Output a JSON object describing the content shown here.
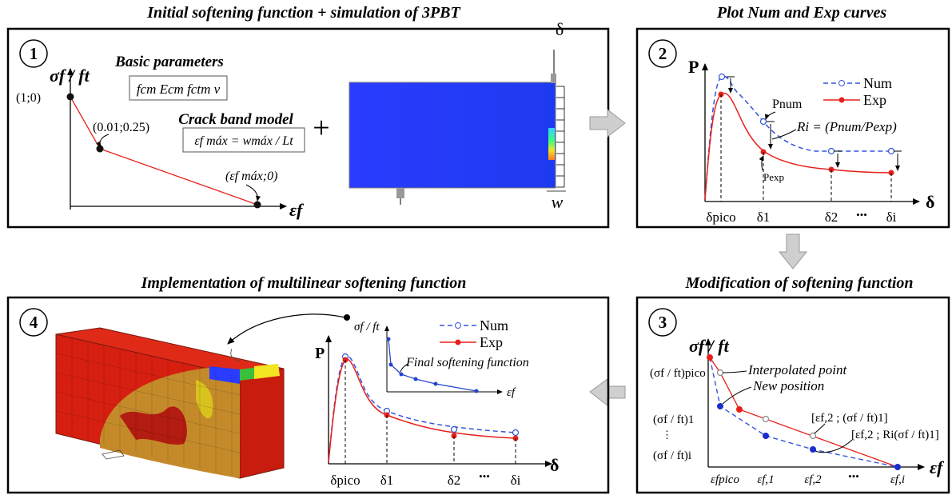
{
  "colors": {
    "num": "#3355dd",
    "exp": "#e8201a",
    "frame": "#000000",
    "arrow_fill": "#cfcfcf",
    "beam_blue": "#2244ff"
  },
  "panel1": {
    "title": "Initial softening function + simulation of 3PBT",
    "step": "1",
    "y_label": "σf / ft",
    "x_label": "εf",
    "basic_params_title": "Basic parameters",
    "basic_params": "fcm Ecm fctm ν",
    "crack_band_title": "Crack band model",
    "crack_band_formula": "εf máx = wmáx / Lt",
    "pt1": "(1;0)",
    "pt2": "(0.01;0.25)",
    "pt3": "(εf máx;0)",
    "plus": "+",
    "delta": "δ",
    "w": "w"
  },
  "panel2": {
    "title": "Plot Num and Exp curves",
    "step": "2",
    "y_label": "P",
    "x_label": "δ",
    "legend_num": "Num",
    "legend_exp": "Exp",
    "p_num": "Pnum",
    "p_exp": "Pexp",
    "ratio": "Ri = (Pnum/Pexp)",
    "ticks": [
      "δpico",
      "δ1",
      "δ2",
      "•••",
      "δi"
    ]
  },
  "panel3": {
    "title": "Modification of softening function",
    "step": "3",
    "y_label": "σf / ft",
    "x_label": "εf",
    "interp": "Interpolated point",
    "newpos": "New position",
    "y_ticks": [
      "(σf / ft)pico",
      "(σf / ft)1",
      "(σf / ft)i"
    ],
    "x_ticks": [
      "εfpico",
      "εf,1",
      "εf,2",
      "•••",
      "εf,i"
    ],
    "pt_a": "[εf,2 ; (σf / ft)1]",
    "pt_b": "[εf,2 ; Ri(σf / ft)1]"
  },
  "panel4": {
    "title": "Implementation of multilinear softening function",
    "step": "4",
    "y_label": "P",
    "x_label": "δ",
    "legend_num": "Num",
    "legend_exp": "Exp",
    "inset_y": "σf / ft",
    "inset_x": "εf",
    "final": "Final softening function",
    "ticks": [
      "δpico",
      "δ1",
      "δ2",
      "•••",
      "δi"
    ]
  }
}
